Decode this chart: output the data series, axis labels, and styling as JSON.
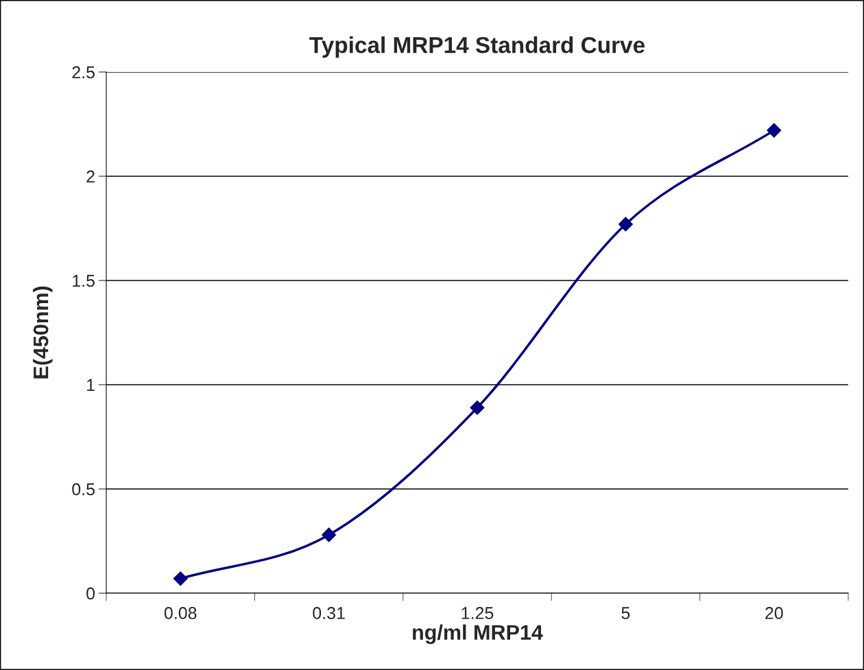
{
  "chart_data": {
    "type": "line",
    "title": "Typical MRP14 Standard Curve",
    "xlabel": "ng/ml MRP14",
    "ylabel": "E(450nm)",
    "categories": [
      "0.08",
      "0.31",
      "1.25",
      "5",
      "20"
    ],
    "series": [
      {
        "color": "#000080",
        "values": [
          0.07,
          0.28,
          0.89,
          1.77,
          2.22
        ]
      }
    ],
    "ylim": [
      0,
      2.5
    ],
    "yticks": [
      0,
      0.5,
      1,
      1.5,
      2,
      2.5
    ],
    "grid": "y",
    "marker": "diamond",
    "line_style": "solid",
    "legend": false
  }
}
